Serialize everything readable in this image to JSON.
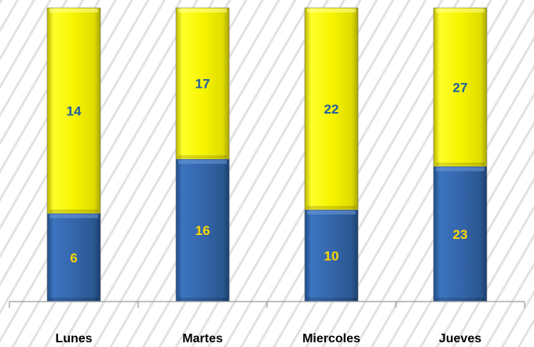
{
  "chart_data": {
    "type": "bar",
    "stacked": true,
    "categories": [
      "Lunes",
      "Martes",
      "Miercoles",
      "Jueves"
    ],
    "series": [
      {
        "values": [
          6,
          16,
          10,
          23
        ],
        "color": "#2e5f9e",
        "label_color": "#ffd700"
      },
      {
        "values": [
          14,
          17,
          22,
          27
        ],
        "color": "#ffff00",
        "label_color": "#1f5fa0"
      }
    ],
    "legend": "none",
    "grid": false,
    "background": "diagonal gray stripes"
  }
}
